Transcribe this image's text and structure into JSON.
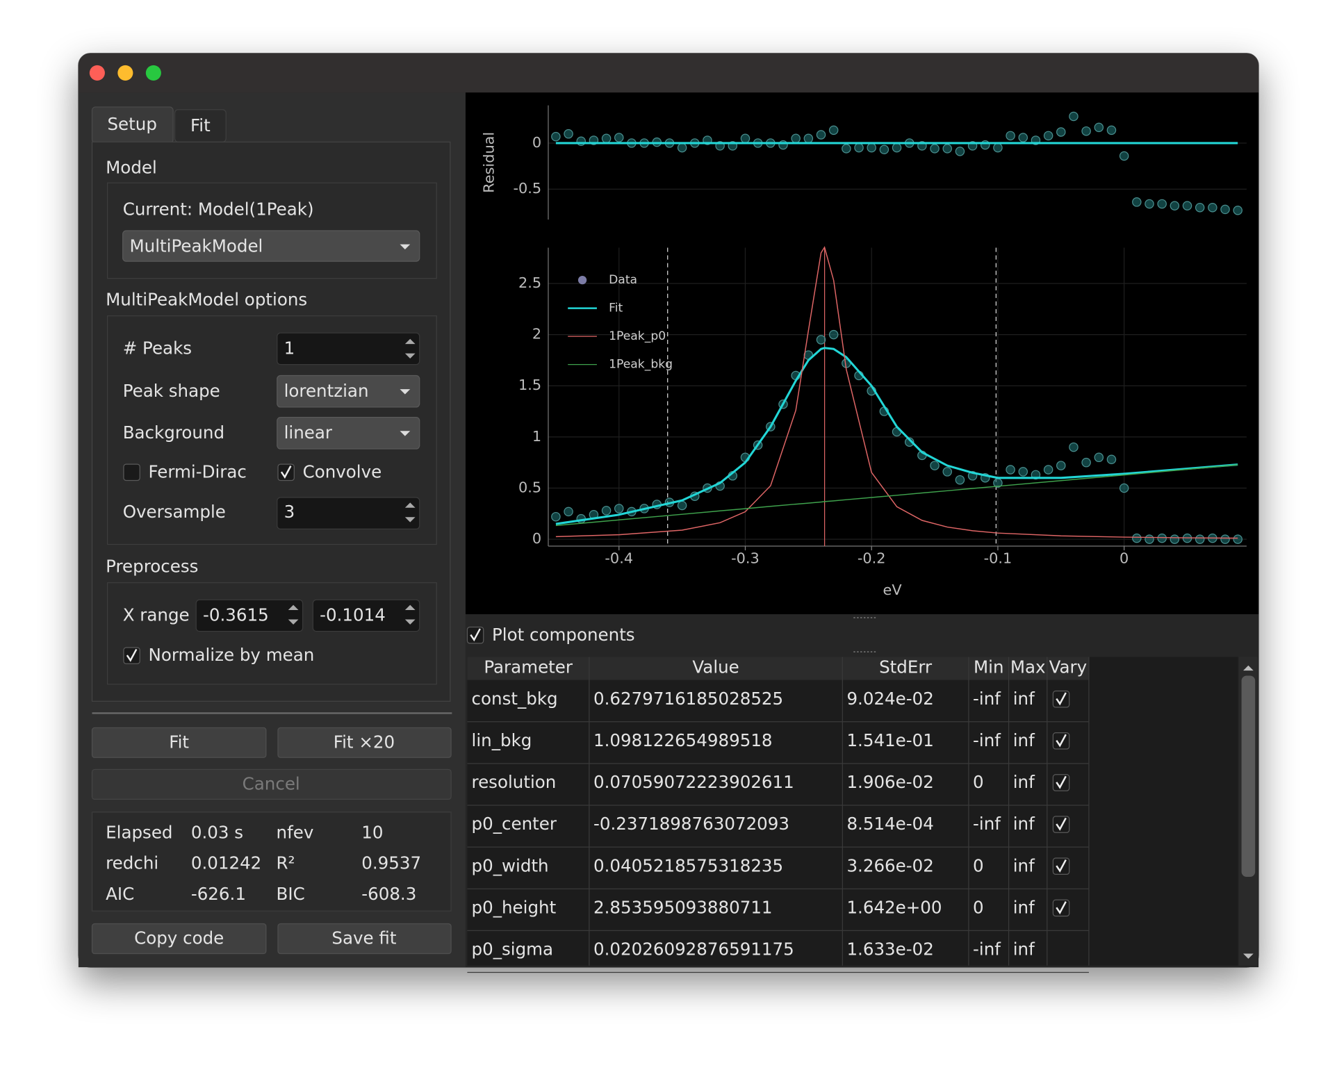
{
  "ui": {
    "tabs": [
      "Setup",
      "Fit"
    ],
    "model": {
      "heading": "Model",
      "current": "Current: Model(1Peak)",
      "choice": "MultiPeakModel"
    },
    "options": {
      "heading": "MultiPeakModel options",
      "peaks_label": "# Peaks",
      "peaks": 1,
      "shape_label": "Peak shape",
      "shape": "lorentzian",
      "background_label": "Background",
      "background": "linear",
      "fermi_dirac_label": "Fermi-Dirac",
      "fermi_dirac": false,
      "convolve_label": "Convolve",
      "convolve": true,
      "oversample_label": "Oversample",
      "oversample": 3
    },
    "preprocess": {
      "heading": "Preprocess",
      "x_range_label": "X range",
      "x_range": [
        -0.3615,
        -0.1014
      ],
      "normalize_label": "Normalize by mean",
      "normalize": true
    },
    "buttons": {
      "fit": "Fit",
      "fit_many": "Fit ×20",
      "cancel": "Cancel",
      "copy": "Copy code",
      "save": "Save fit"
    },
    "stats": [
      [
        "Elapsed",
        "0.03 s",
        "nfev",
        10
      ],
      [
        "redchi",
        0.01242,
        "R²",
        0.9537
      ],
      [
        "AIC",
        -626.1,
        "BIC",
        -608.3
      ]
    ],
    "plot_components_label": "Plot components",
    "plot_components": true,
    "table": {
      "header": [
        "Parameter",
        "Value",
        "StdErr",
        "Min",
        "Max",
        "Vary"
      ],
      "rows": [
        [
          "const_bkg",
          "0.6279716185028525",
          "9.024e-02",
          "-inf",
          "inf",
          true
        ],
        [
          "lin_bkg",
          "1.098122654989518",
          "1.541e-01",
          "-inf",
          "inf",
          true
        ],
        [
          "resolution",
          "0.07059072223902611",
          "1.906e-02",
          "0",
          "inf",
          true
        ],
        [
          "p0_center",
          "-0.2371898763072093",
          "8.514e-04",
          "-inf",
          "inf",
          true
        ],
        [
          "p0_width",
          "0.0405218575318235",
          "3.266e-02",
          "0",
          "inf",
          true
        ],
        [
          "p0_height",
          "2.853595093880711",
          "1.642e+00",
          "0",
          "inf",
          true
        ],
        [
          "p0_sigma",
          "0.02026092876591175",
          "1.633e-02",
          "-inf",
          "inf",
          null
        ]
      ]
    }
  },
  "chart_data": [
    {
      "type": "scatter",
      "ylabel": "Residual",
      "xlim": [
        -0.456,
        0.097
      ],
      "ylim": [
        -0.83,
        0.41
      ],
      "yticks": [
        0,
        -0.5
      ],
      "grid": true,
      "series": [
        {
          "style": "markers",
          "color": "#1d6e6e",
          "x": [
            -0.45,
            -0.44,
            -0.43,
            -0.42,
            -0.41,
            -0.4,
            -0.39,
            -0.38,
            -0.37,
            -0.36,
            -0.35,
            -0.34,
            -0.33,
            -0.32,
            -0.31,
            -0.3,
            -0.29,
            -0.28,
            -0.27,
            -0.26,
            -0.25,
            -0.24,
            -0.23,
            -0.22,
            -0.21,
            -0.2,
            -0.19,
            -0.18,
            -0.17,
            -0.16,
            -0.15,
            -0.14,
            -0.13,
            -0.12,
            -0.11,
            -0.1,
            -0.09,
            -0.08,
            -0.07,
            -0.06,
            -0.05,
            -0.04,
            -0.03,
            -0.02,
            -0.01,
            0,
            0.01,
            0.02,
            0.03,
            0.04,
            0.05,
            0.06,
            0.07,
            0.08,
            0.09
          ],
          "values": [
            0.07,
            0.1,
            0.02,
            0.03,
            0.05,
            0.06,
            0,
            0,
            0.01,
            0,
            -0.05,
            0,
            0.03,
            -0.03,
            -0.03,
            0.05,
            0,
            0,
            -0.02,
            0.05,
            0.05,
            0.09,
            0.14,
            -0.06,
            -0.05,
            -0.05,
            -0.07,
            -0.05,
            0,
            -0.03,
            -0.06,
            -0.06,
            -0.09,
            -0.03,
            -0.02,
            -0.05,
            0.08,
            0.06,
            0.03,
            0.08,
            0.12,
            0.29,
            0.13,
            0.17,
            0.14,
            -0.14,
            -0.64,
            -0.66,
            -0.66,
            -0.68,
            -0.68,
            -0.7,
            -0.7,
            -0.72,
            -0.73
          ]
        },
        {
          "style": "line",
          "color": "#22d6d6",
          "x": [
            -0.45,
            0.09
          ],
          "values": [
            0,
            0
          ]
        }
      ]
    },
    {
      "type": "scatter",
      "xlabel": "eV",
      "xlim": [
        -0.456,
        0.097
      ],
      "ylim": [
        -0.067,
        2.85
      ],
      "xticks": [
        -0.4,
        -0.3,
        -0.2,
        -0.1,
        0
      ],
      "yticks": [
        0,
        0.5,
        1,
        1.5,
        2,
        2.5
      ],
      "grid": true,
      "legend": "upper left",
      "series": [
        {
          "name": "Data",
          "style": "markers",
          "color": "#1d6e6e",
          "legend_color": "#7c7ca6",
          "x": [
            -0.45,
            -0.44,
            -0.43,
            -0.42,
            -0.41,
            -0.4,
            -0.39,
            -0.38,
            -0.37,
            -0.36,
            -0.35,
            -0.34,
            -0.33,
            -0.32,
            -0.31,
            -0.3,
            -0.29,
            -0.28,
            -0.27,
            -0.26,
            -0.25,
            -0.24,
            -0.23,
            -0.22,
            -0.21,
            -0.2,
            -0.19,
            -0.18,
            -0.17,
            -0.16,
            -0.15,
            -0.14,
            -0.13,
            -0.12,
            -0.11,
            -0.1,
            -0.09,
            -0.08,
            -0.07,
            -0.06,
            -0.05,
            -0.04,
            -0.03,
            -0.02,
            -0.01,
            0,
            0.01,
            0.02,
            0.03,
            0.04,
            0.05,
            0.06,
            0.07,
            0.08,
            0.09
          ],
          "values": [
            0.22,
            0.27,
            0.2,
            0.24,
            0.28,
            0.3,
            0.27,
            0.3,
            0.34,
            0.36,
            0.33,
            0.42,
            0.5,
            0.52,
            0.62,
            0.8,
            0.92,
            1.1,
            1.32,
            1.6,
            1.8,
            1.95,
            2.0,
            1.72,
            1.6,
            1.45,
            1.25,
            1.05,
            0.95,
            0.82,
            0.72,
            0.66,
            0.58,
            0.62,
            0.6,
            0.55,
            0.68,
            0.66,
            0.63,
            0.68,
            0.72,
            0.9,
            0.75,
            0.8,
            0.78,
            0.5,
            0.01,
            0,
            0.01,
            0,
            0.01,
            0,
            0.01,
            0,
            0
          ]
        },
        {
          "name": "Fit",
          "style": "line",
          "color": "#22d6d6",
          "x": [
            -0.45,
            -0.4,
            -0.35,
            -0.32,
            -0.3,
            -0.28,
            -0.26,
            -0.25,
            -0.24,
            -0.2372,
            -0.23,
            -0.22,
            -0.2,
            -0.18,
            -0.16,
            -0.14,
            -0.12,
            -0.1,
            -0.05,
            0,
            0.05,
            0.09
          ],
          "values": [
            0.15,
            0.24,
            0.38,
            0.55,
            0.75,
            1.1,
            1.55,
            1.75,
            1.86,
            1.87,
            1.86,
            1.78,
            1.5,
            1.1,
            0.85,
            0.72,
            0.65,
            0.6,
            0.6,
            0.64,
            0.69,
            0.73
          ]
        },
        {
          "name": "1Peak_p0",
          "style": "line",
          "color": "#e06666",
          "x": [
            -0.45,
            -0.4,
            -0.35,
            -0.32,
            -0.3,
            -0.28,
            -0.26,
            -0.25,
            -0.24,
            -0.2372,
            -0.23,
            -0.22,
            -0.2,
            -0.18,
            -0.16,
            -0.14,
            -0.12,
            -0.1,
            -0.05,
            0,
            0.05,
            0.09
          ],
          "values": [
            0.0256,
            0.0435,
            0.089,
            0.161,
            0.269,
            0.523,
            1.26,
            2.04,
            2.8,
            2.854,
            2.53,
            1.66,
            0.653,
            0.318,
            0.184,
            0.119,
            0.0827,
            0.0609,
            0.033,
            0.0207,
            0.0141,
            0.0109
          ]
        },
        {
          "name": "1Peak_bkg",
          "style": "line",
          "color": "#3fa34d",
          "x": [
            -0.45,
            -0.4,
            -0.35,
            -0.32,
            -0.3,
            -0.28,
            -0.26,
            -0.25,
            -0.24,
            -0.2372,
            -0.23,
            -0.22,
            -0.2,
            -0.18,
            -0.16,
            -0.14,
            -0.12,
            -0.1,
            -0.05,
            0,
            0.05,
            0.09
          ],
          "values": [
            0.134,
            0.189,
            0.244,
            0.277,
            0.299,
            0.321,
            0.343,
            0.353,
            0.364,
            0.368,
            0.375,
            0.386,
            0.408,
            0.43,
            0.452,
            0.474,
            0.496,
            0.518,
            0.573,
            0.628,
            0.683,
            0.727
          ]
        }
      ]
    }
  ]
}
